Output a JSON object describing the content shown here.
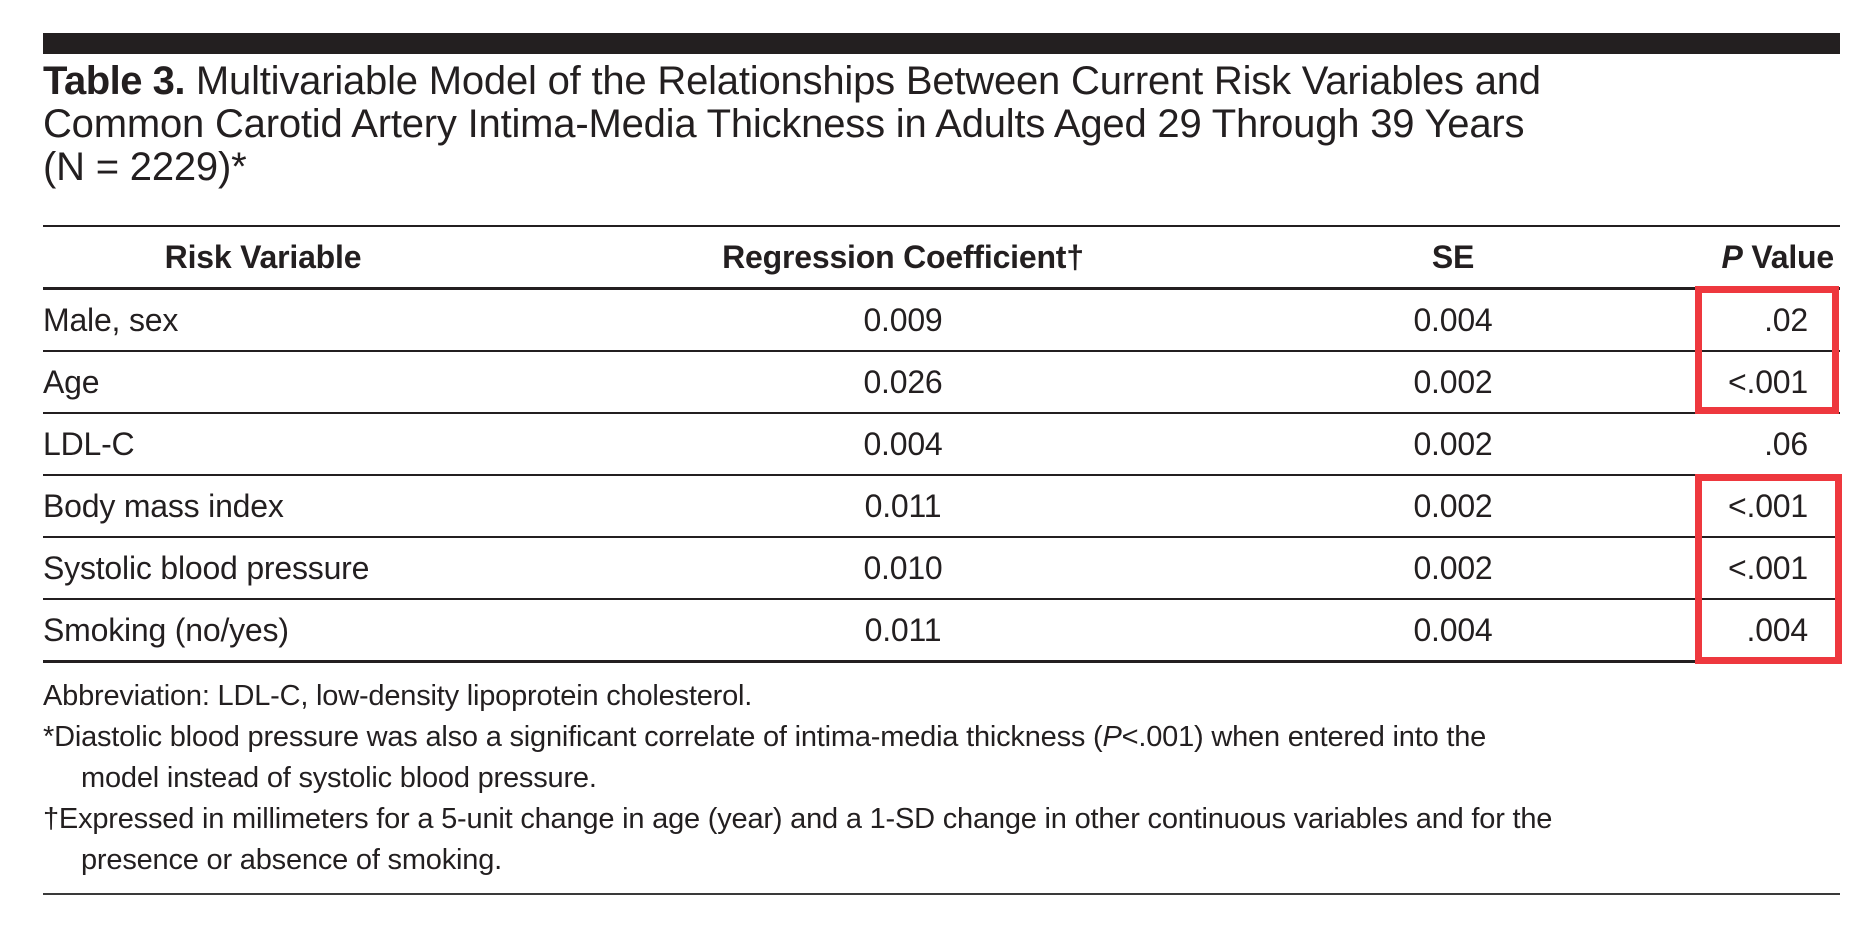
{
  "title": {
    "label": "Table 3.",
    "line1": " Multivariable Model of the Relationships Between Current Risk Variables and",
    "line2": "Common Carotid Artery Intima-Media Thickness in Adults Aged 29 Through 39 Years",
    "line3": "(N = 2229)*"
  },
  "table": {
    "headers": {
      "risk_variable": "Risk Variable",
      "coefficient": "Regression Coefficient†",
      "se": "SE",
      "p_italic": "P",
      "p_rest": " Value"
    },
    "rows": [
      {
        "variable": "Male, sex",
        "coefficient": "0.009",
        "se": "0.004",
        "p": ".02"
      },
      {
        "variable": "Age",
        "coefficient": "0.026",
        "se": "0.002",
        "p": "<.001"
      },
      {
        "variable": "LDL-C",
        "coefficient": "0.004",
        "se": "0.002",
        "p": ".06"
      },
      {
        "variable": "Body mass index",
        "coefficient": "0.011",
        "se": "0.002",
        "p": "<.001"
      },
      {
        "variable": "Systolic blood pressure",
        "coefficient": "0.010",
        "se": "0.002",
        "p": "<.001"
      },
      {
        "variable": "Smoking (no/yes)",
        "coefficient": "0.011",
        "se": "0.004",
        "p": ".004"
      }
    ]
  },
  "footnotes": {
    "abbreviation": "Abbreviation: LDL-C, low-density lipoprotein cholesterol.",
    "asterisk_pre": "*Diastolic blood pressure was also a significant correlate of intima-media thickness (",
    "asterisk_p": "P",
    "asterisk_post": "<.001) when entered into the",
    "asterisk_line2": "model instead of systolic blood pressure.",
    "dagger_line1": "†Expressed in millimeters for a 5-unit change in age (year) and a 1-SD change in other continuous variables and for the",
    "dagger_line2": "presence or absence of smoking."
  },
  "annotations": {
    "highlight_color": "#ee383e",
    "highlighted_p_values_group1": [
      ".02",
      "<.001"
    ],
    "highlighted_p_values_group2": [
      "<.001",
      "<.001",
      ".004"
    ]
  }
}
